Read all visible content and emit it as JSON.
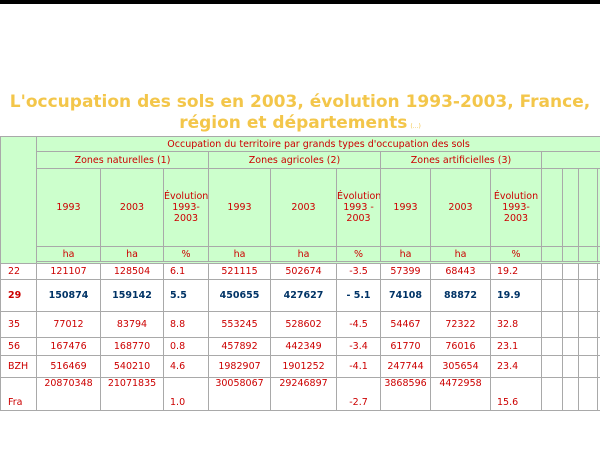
{
  "title_line1": "L'occupation des sols en 2003, évolution 1993-2003, France,",
  "title_line2": "région et départements",
  "title_small": "(...)",
  "table": {
    "main_header": "Occupation du territoire par grands types d'occupation des sols",
    "groups": [
      "Zones naturelles (1)",
      "Zones agricoles (2)",
      "Zones artificielles (3)"
    ],
    "year1": "1993",
    "year2": "2003",
    "evol_label_natural": "Évolution 1993-2003",
    "evol_label_agri": "Évolution 1993 - 2003",
    "evol_label_arti": "Évolution 1993-2003",
    "unit_ha": "ha",
    "unit_pct": "%",
    "rows": [
      {
        "code": "22",
        "v": [
          "121107",
          "128504",
          "6.1",
          "521115",
          "502674",
          "-3.5",
          "57399",
          "68443",
          "19.2"
        ]
      },
      {
        "code": "29",
        "v": [
          "150874",
          "159142",
          "5.5",
          "450655",
          "427627",
          "- 5.1",
          "74108",
          "88872",
          "19.9"
        ]
      },
      {
        "code": "35",
        "v": [
          "77012",
          "83794",
          "8.8",
          "553245",
          "528602",
          "-4.5",
          "54467",
          "72322",
          "32.8"
        ]
      },
      {
        "code": "56",
        "v": [
          "167476",
          "168770",
          "0.8",
          "457892",
          "442349",
          "-3.4",
          "61770",
          "76016",
          "23.1"
        ]
      },
      {
        "code": "BZH",
        "v": [
          "516469",
          "540210",
          "4.6",
          "1982907",
          "1901252",
          "-4.1",
          "247744",
          "305654",
          "23.4"
        ]
      },
      {
        "code": "Fra",
        "v": [
          "20870348",
          "21071835",
          "1.0",
          "30058067",
          "29246897",
          "-2.7",
          "3868596",
          "4472958",
          "15.6"
        ]
      }
    ]
  }
}
